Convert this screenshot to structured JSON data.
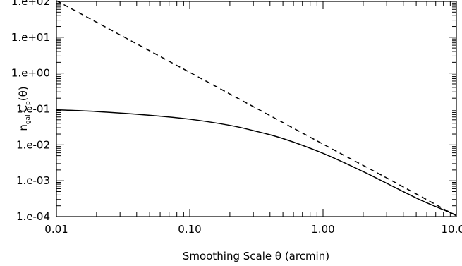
{
  "chart_data": {
    "type": "line",
    "xlabel": "Smoothing Scale θ (arcmin)",
    "ylabel": {
      "base": "n",
      "base_sub": "gal",
      "func": "C",
      "func_sub": "p",
      "arg": "(θ)"
    },
    "xscale": "log",
    "yscale": "log",
    "xlim": [
      0.01,
      10.0
    ],
    "ylim": [
      0.0001,
      100
    ],
    "x_ticks": [
      {
        "value": 0.01,
        "label": "0.01"
      },
      {
        "value": 0.1,
        "label": "0.10"
      },
      {
        "value": 1.0,
        "label": "1.00"
      },
      {
        "value": 10.0,
        "label": "10.00"
      }
    ],
    "y_ticks": [
      {
        "value": 100,
        "label": "1.e+02"
      },
      {
        "value": 10,
        "label": "1.e+01"
      },
      {
        "value": 1,
        "label": "1.e+00"
      },
      {
        "value": 0.1,
        "label": "1.e-01"
      },
      {
        "value": 0.01,
        "label": "1.e-02"
      },
      {
        "value": 0.001,
        "label": "1.e-03"
      },
      {
        "value": 0.0001,
        "label": "1.e-04"
      }
    ],
    "grid": false,
    "series": [
      {
        "style": "solid",
        "x": [
          0.01,
          0.02,
          0.05,
          0.1,
          0.2,
          0.3,
          0.5,
          1.0,
          2.0,
          3.0,
          5.0,
          7.0,
          10.0
        ],
        "y": [
          0.095,
          0.085,
          0.067,
          0.052,
          0.035,
          0.025,
          0.015,
          0.0058,
          0.0018,
          0.00085,
          0.00033,
          0.00019,
          0.00011
        ]
      },
      {
        "style": "dashed",
        "x": [
          0.01,
          0.1,
          1.0,
          3.0,
          10.0
        ],
        "y": [
          105,
          1.05,
          0.0105,
          0.0012,
          0.000105
        ]
      }
    ]
  }
}
